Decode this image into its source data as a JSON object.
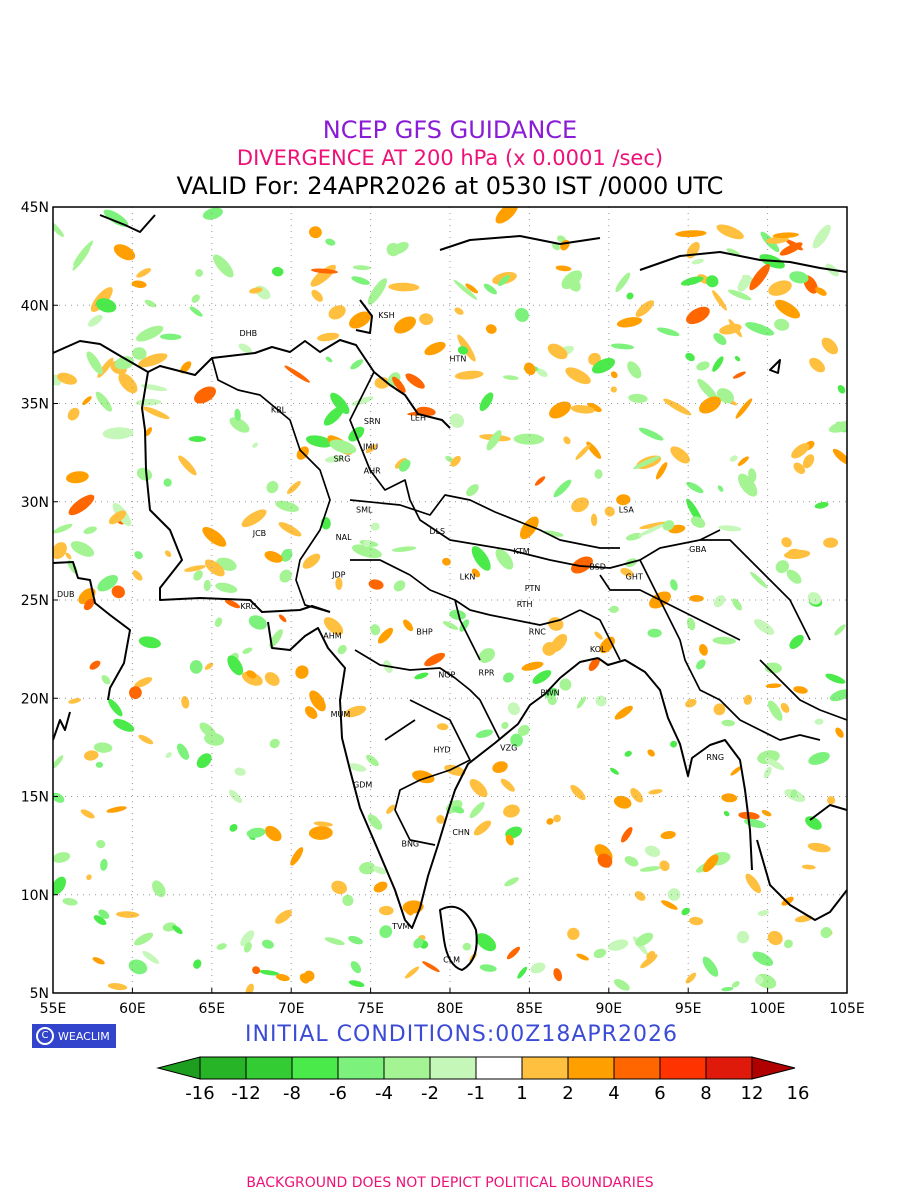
{
  "header": {
    "title": "NCEP GFS GUIDANCE",
    "subtitle": "DIVERGENCE AT 200 hPa (x 0.0001 /sec)",
    "valid": "VALID For: 24APR2026 at 0530 IST /0000 UTC",
    "title_color": "#8a1bd6",
    "subtitle_color": "#ee1177"
  },
  "map": {
    "lon_range": [
      55,
      105
    ],
    "lat_range": [
      5,
      45
    ],
    "grid": true,
    "lon_ticks": [
      "55E",
      "60E",
      "65E",
      "70E",
      "75E",
      "80E",
      "85E",
      "90E",
      "95E",
      "100E",
      "105E"
    ],
    "lat_ticks": [
      "5N",
      "10N",
      "15N",
      "20N",
      "25N",
      "30N",
      "35N",
      "40N",
      "45N"
    ],
    "stations": [
      {
        "code": "DHB",
        "lon": 67.3,
        "lat": 38.6
      },
      {
        "code": "KSH",
        "lon": 76.0,
        "lat": 39.5
      },
      {
        "code": "HTN",
        "lon": 80.5,
        "lat": 37.3
      },
      {
        "code": "KBL",
        "lon": 69.2,
        "lat": 34.7
      },
      {
        "code": "SRN",
        "lon": 75.1,
        "lat": 34.1
      },
      {
        "code": "LEH",
        "lon": 78.0,
        "lat": 34.3
      },
      {
        "code": "JMU",
        "lon": 75.0,
        "lat": 32.8
      },
      {
        "code": "SRG",
        "lon": 73.2,
        "lat": 32.2
      },
      {
        "code": "AHR",
        "lon": 75.1,
        "lat": 31.6
      },
      {
        "code": "SML",
        "lon": 74.6,
        "lat": 29.6
      },
      {
        "code": "LSA",
        "lon": 91.1,
        "lat": 29.6
      },
      {
        "code": "JCB",
        "lon": 68.0,
        "lat": 28.4
      },
      {
        "code": "DLS",
        "lon": 79.2,
        "lat": 28.5
      },
      {
        "code": "NAL",
        "lon": 73.3,
        "lat": 28.2
      },
      {
        "code": "KTM",
        "lon": 84.5,
        "lat": 27.5
      },
      {
        "code": "GBA",
        "lon": 95.6,
        "lat": 27.6
      },
      {
        "code": "BSD",
        "lon": 89.3,
        "lat": 26.7
      },
      {
        "code": "GHT",
        "lon": 91.6,
        "lat": 26.2
      },
      {
        "code": "JDP",
        "lon": 73.0,
        "lat": 26.3
      },
      {
        "code": "LKN",
        "lon": 81.1,
        "lat": 26.2
      },
      {
        "code": "PTN",
        "lon": 85.2,
        "lat": 25.6
      },
      {
        "code": "DUB",
        "lon": 55.8,
        "lat": 25.3
      },
      {
        "code": "KRC",
        "lon": 67.3,
        "lat": 24.7
      },
      {
        "code": "RTH",
        "lon": 84.7,
        "lat": 24.8
      },
      {
        "code": "BHP",
        "lon": 78.4,
        "lat": 23.4
      },
      {
        "code": "AHM",
        "lon": 72.6,
        "lat": 23.2
      },
      {
        "code": "RNC",
        "lon": 85.5,
        "lat": 23.4
      },
      {
        "code": "KOL",
        "lon": 89.3,
        "lat": 22.5
      },
      {
        "code": "NGP",
        "lon": 79.8,
        "lat": 21.2
      },
      {
        "code": "RPR",
        "lon": 82.3,
        "lat": 21.3
      },
      {
        "code": "BWN",
        "lon": 86.3,
        "lat": 20.3
      },
      {
        "code": "MUM",
        "lon": 73.1,
        "lat": 19.2
      },
      {
        "code": "HYD",
        "lon": 79.5,
        "lat": 17.4
      },
      {
        "code": "VZG",
        "lon": 83.7,
        "lat": 17.5
      },
      {
        "code": "RNG",
        "lon": 96.7,
        "lat": 17.0
      },
      {
        "code": "GDM",
        "lon": 74.5,
        "lat": 15.6
      },
      {
        "code": "CHN",
        "lon": 80.7,
        "lat": 13.2
      },
      {
        "code": "BNG",
        "lon": 77.5,
        "lat": 12.6
      },
      {
        "code": "TVM",
        "lon": 76.9,
        "lat": 8.4
      },
      {
        "code": "CLM",
        "lon": 80.1,
        "lat": 6.7
      }
    ]
  },
  "init": {
    "text": "INITIAL CONDITIONS:00Z18APR2026",
    "color": "#3b4bd6"
  },
  "legend": {
    "labels": [
      "-16",
      "-12",
      "-8",
      "-6",
      "-4",
      "-2",
      "-1",
      "1",
      "2",
      "4",
      "6",
      "8",
      "12",
      "16"
    ],
    "colors": [
      "#1e9e1e",
      "#27b427",
      "#33cc33",
      "#4aea4a",
      "#7cf27c",
      "#a4f494",
      "#c5f8b8",
      "#ffffff",
      "#ffc040",
      "#ffa000",
      "#ff6600",
      "#ff3300",
      "#e01a0a",
      "#b00000"
    ]
  },
  "logo": {
    "text": "WEACLIM",
    "mark": "C"
  },
  "footer": {
    "text": "BACKGROUND DOES NOT DEPICT POLITICAL BOUNDARIES",
    "color": "#ee1177"
  }
}
